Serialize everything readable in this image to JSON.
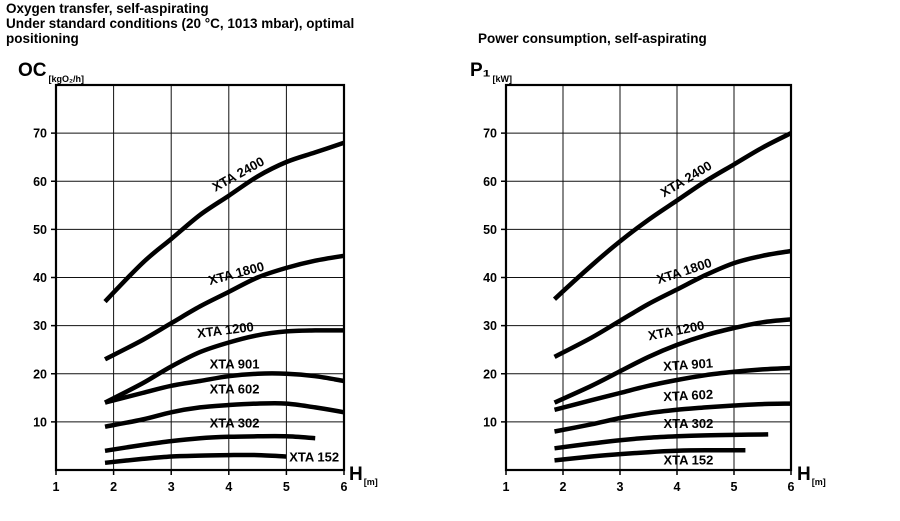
{
  "chart_data": [
    {
      "type": "line",
      "title": "Oxygen transfer, self-aspirating\nUnder standard conditions (20 °C, 1013 mbar), optimal\npositioning",
      "ylabel": "OC",
      "ylabel_unit": "[kgO₂/h]",
      "xlabel": "H",
      "xlabel_unit": "[m]",
      "xlim": [
        1,
        6
      ],
      "ylim": [
        0,
        80
      ],
      "x_ticks": [
        "1",
        "2",
        "3",
        "4",
        "5",
        "6"
      ],
      "y_ticks": [
        "10",
        "20",
        "30",
        "40",
        "50",
        "60",
        "70"
      ],
      "grid": true,
      "series": [
        {
          "name": "XTA 2400",
          "x": [
            1.85,
            2.5,
            3,
            3.5,
            4,
            4.5,
            5,
            5.5,
            6
          ],
          "y": [
            35,
            43,
            48,
            53,
            57,
            61,
            64,
            66,
            68
          ]
        },
        {
          "name": "XTA 1800",
          "x": [
            1.85,
            2.5,
            3,
            3.5,
            4,
            4.5,
            5,
            5.5,
            6
          ],
          "y": [
            23,
            27,
            30.5,
            34,
            37,
            40,
            42,
            43.5,
            44.5
          ]
        },
        {
          "name": "XTA 1200",
          "x": [
            1.85,
            2.5,
            3,
            3.5,
            4,
            4.5,
            5,
            5.5,
            6
          ],
          "y": [
            14,
            18,
            21.5,
            24.5,
            26.5,
            28,
            28.8,
            29,
            29
          ]
        },
        {
          "name": "XTA 901",
          "x": [
            1.85,
            2.5,
            3,
            3.5,
            4,
            4.5,
            5,
            5.5,
            6
          ],
          "y": [
            14,
            16,
            17.5,
            18.5,
            19.5,
            20,
            20,
            19.5,
            18.5
          ]
        },
        {
          "name": "XTA 602",
          "x": [
            1.85,
            2.5,
            3,
            3.5,
            4,
            4.5,
            5,
            5.5,
            6
          ],
          "y": [
            9,
            10.5,
            12,
            13,
            13.5,
            13.8,
            13.8,
            13,
            12
          ]
        },
        {
          "name": "XTA 302",
          "x": [
            1.85,
            2.5,
            3,
            3.5,
            4,
            4.5,
            5,
            5.5
          ],
          "y": [
            4,
            5.2,
            6,
            6.6,
            6.9,
            7,
            7,
            6.6
          ]
        },
        {
          "name": "XTA 152",
          "x": [
            1.85,
            2.5,
            3,
            3.5,
            4,
            4.5,
            5
          ],
          "y": [
            1.5,
            2.3,
            2.8,
            3,
            3.1,
            3.1,
            2.8
          ]
        }
      ]
    },
    {
      "type": "line",
      "title": "Power consumption, self-aspirating",
      "ylabel": "P₁",
      "ylabel_unit": "[kW]",
      "xlabel": "H",
      "xlabel_unit": "[m]",
      "xlim": [
        1,
        6
      ],
      "ylim": [
        0,
        80
      ],
      "x_ticks": [
        "1",
        "2",
        "3",
        "4",
        "5",
        "6"
      ],
      "y_ticks": [
        "10",
        "20",
        "30",
        "40",
        "50",
        "60",
        "70"
      ],
      "grid": true,
      "series": [
        {
          "name": "XTA 2400",
          "x": [
            1.85,
            2.5,
            3,
            3.5,
            4,
            4.5,
            5,
            5.5,
            6
          ],
          "y": [
            35.5,
            42.5,
            47.5,
            52,
            56,
            60,
            63.5,
            67,
            70
          ]
        },
        {
          "name": "XTA 1800",
          "x": [
            1.85,
            2.5,
            3,
            3.5,
            4,
            4.5,
            5,
            5.5,
            6
          ],
          "y": [
            23.5,
            27.5,
            31,
            34.5,
            37.5,
            40.5,
            43,
            44.5,
            45.5
          ]
        },
        {
          "name": "XTA 1200",
          "x": [
            1.85,
            2.5,
            3,
            3.5,
            4,
            4.5,
            5,
            5.5,
            6
          ],
          "y": [
            14,
            17.5,
            20.5,
            23.5,
            26,
            28,
            29.5,
            30.7,
            31.3
          ]
        },
        {
          "name": "XTA 901",
          "x": [
            1.85,
            2.5,
            3,
            3.5,
            4,
            4.5,
            5,
            5.5,
            6
          ],
          "y": [
            12.5,
            14.5,
            16,
            17.5,
            18.7,
            19.7,
            20.4,
            20.9,
            21.2
          ]
        },
        {
          "name": "XTA 602",
          "x": [
            1.85,
            2.5,
            3,
            3.5,
            4,
            4.5,
            5,
            5.5,
            6
          ],
          "y": [
            8,
            9.5,
            10.8,
            11.8,
            12.5,
            13,
            13.4,
            13.7,
            13.8
          ]
        },
        {
          "name": "XTA 302",
          "x": [
            1.85,
            2.5,
            3,
            3.5,
            4,
            4.5,
            5,
            5.6
          ],
          "y": [
            4.5,
            5.5,
            6.2,
            6.7,
            7,
            7.2,
            7.3,
            7.4
          ]
        },
        {
          "name": "XTA 152",
          "x": [
            1.85,
            2.5,
            3,
            3.5,
            4,
            4.5,
            5,
            5.2
          ],
          "y": [
            2,
            2.8,
            3.3,
            3.7,
            4,
            4.1,
            4.1,
            4.1
          ]
        }
      ]
    }
  ]
}
